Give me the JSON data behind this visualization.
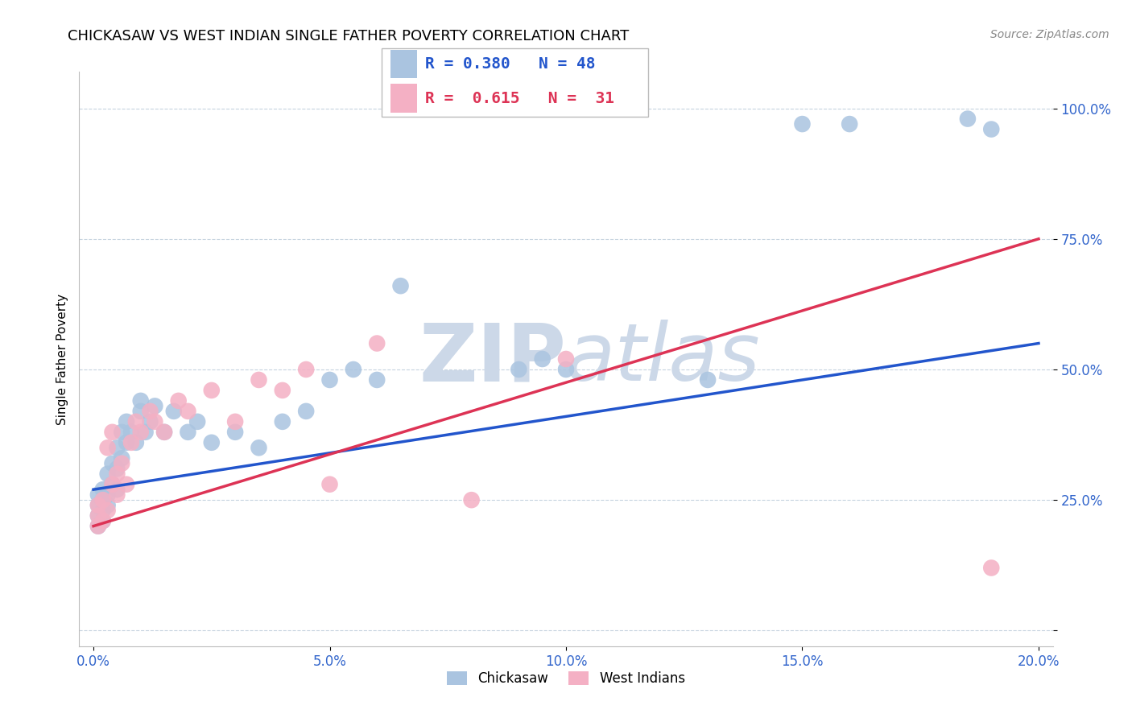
{
  "title": "CHICKASAW VS WEST INDIAN SINGLE FATHER POVERTY CORRELATION CHART",
  "source": "Source: ZipAtlas.com",
  "xlabel_tick_vals": [
    0.0,
    0.05,
    0.1,
    0.15,
    0.2
  ],
  "ylabel_tick_vals": [
    0.0,
    0.25,
    0.5,
    0.75,
    1.0
  ],
  "chickasaw_R": 0.38,
  "chickasaw_N": 48,
  "west_indian_R": 0.615,
  "west_indian_N": 31,
  "chickasaw_color": "#aac4e0",
  "west_indian_color": "#f4b0c4",
  "chickasaw_line_color": "#2255cc",
  "west_indian_line_color": "#dd3355",
  "background_color": "#ffffff",
  "watermark_color": "#ccd8e8",
  "title_fontsize": 13,
  "axis_label": "Single Father Poverty",
  "chickasaw_x": [
    0.001,
    0.001,
    0.001,
    0.001,
    0.002,
    0.002,
    0.002,
    0.002,
    0.003,
    0.003,
    0.003,
    0.004,
    0.004,
    0.005,
    0.005,
    0.005,
    0.006,
    0.006,
    0.007,
    0.007,
    0.008,
    0.009,
    0.01,
    0.01,
    0.011,
    0.012,
    0.013,
    0.015,
    0.017,
    0.02,
    0.022,
    0.025,
    0.03,
    0.035,
    0.04,
    0.045,
    0.05,
    0.055,
    0.06,
    0.065,
    0.09,
    0.095,
    0.1,
    0.13,
    0.15,
    0.16,
    0.185,
    0.19
  ],
  "chickasaw_y": [
    0.2,
    0.22,
    0.24,
    0.26,
    0.21,
    0.23,
    0.25,
    0.27,
    0.24,
    0.26,
    0.3,
    0.28,
    0.32,
    0.27,
    0.31,
    0.35,
    0.33,
    0.38,
    0.36,
    0.4,
    0.38,
    0.36,
    0.42,
    0.44,
    0.38,
    0.4,
    0.43,
    0.38,
    0.42,
    0.38,
    0.4,
    0.36,
    0.38,
    0.35,
    0.4,
    0.42,
    0.48,
    0.5,
    0.48,
    0.66,
    0.5,
    0.52,
    0.5,
    0.48,
    0.97,
    0.97,
    0.98,
    0.96
  ],
  "west_indian_x": [
    0.001,
    0.001,
    0.001,
    0.002,
    0.002,
    0.003,
    0.003,
    0.004,
    0.004,
    0.005,
    0.005,
    0.006,
    0.007,
    0.008,
    0.009,
    0.01,
    0.012,
    0.013,
    0.015,
    0.018,
    0.02,
    0.025,
    0.03,
    0.035,
    0.04,
    0.045,
    0.05,
    0.06,
    0.08,
    0.1,
    0.19
  ],
  "west_indian_y": [
    0.2,
    0.22,
    0.24,
    0.21,
    0.25,
    0.23,
    0.35,
    0.38,
    0.28,
    0.26,
    0.3,
    0.32,
    0.28,
    0.36,
    0.4,
    0.38,
    0.42,
    0.4,
    0.38,
    0.44,
    0.42,
    0.46,
    0.4,
    0.48,
    0.46,
    0.5,
    0.28,
    0.55,
    0.25,
    0.52,
    0.12
  ],
  "ck_line_x0": 0.0,
  "ck_line_y0": 0.27,
  "ck_line_x1": 0.2,
  "ck_line_y1": 0.55,
  "wi_line_x0": 0.0,
  "wi_line_y0": 0.2,
  "wi_line_x1": 0.2,
  "wi_line_y1": 0.75
}
